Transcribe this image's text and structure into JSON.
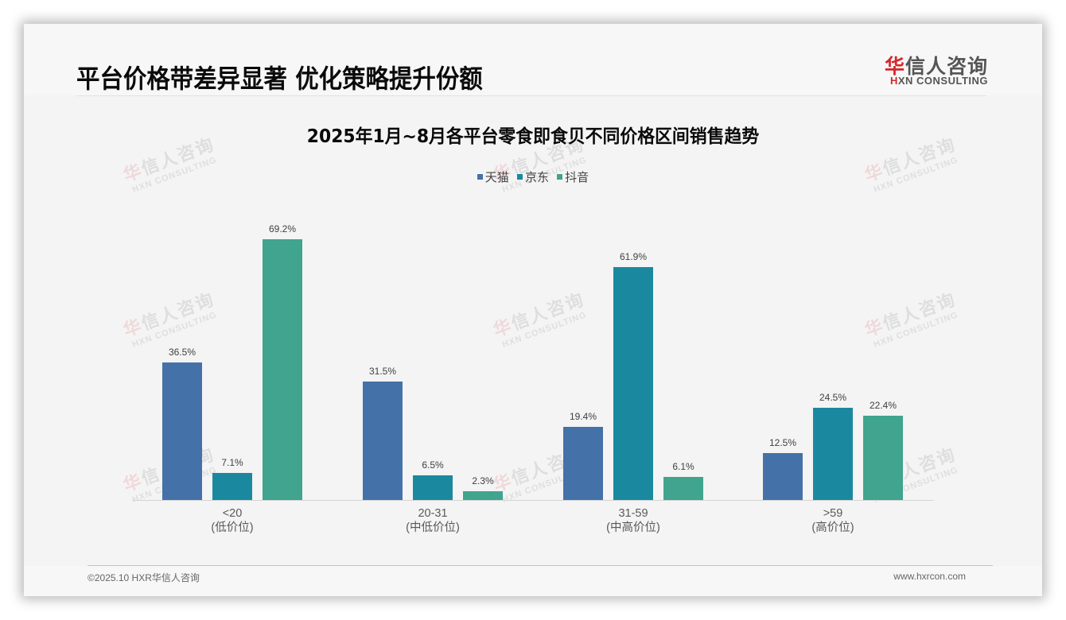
{
  "header": {
    "title": "平台价格带差异显著 优化策略提升份额",
    "logo": {
      "cn_first": "华",
      "cn_rest": "信人咨询",
      "en_first": "H",
      "en_rest": "XN CONSULTING"
    }
  },
  "watermark": {
    "cn_first": "华",
    "cn_rest": "信人咨询",
    "en": "HXN CONSULTING"
  },
  "colors": {
    "tmall": "#4472a8",
    "jd": "#1a89a0",
    "douyin": "#40a48f",
    "accent_red": "#d7262b"
  },
  "chart_data": {
    "type": "bar",
    "title": "2025年1月~8月各平台零食即食贝不同价格区间销售趋势",
    "xlabel": "",
    "ylabel": "",
    "ylim": [
      0,
      75
    ],
    "grid": false,
    "legend_position": "top",
    "categories": [
      "<20",
      "20-31",
      "31-59",
      ">59"
    ],
    "category_sublabels": [
      "(低价位)",
      "(中低价位)",
      "(中高价位)",
      "(高价位)"
    ],
    "series": [
      {
        "name": "天猫",
        "color": "#4472a8",
        "values": [
          36.5,
          31.5,
          19.4,
          12.5
        ],
        "labels": [
          "36.5%",
          "31.5%",
          "19.4%",
          "12.5%"
        ]
      },
      {
        "name": "京东",
        "color": "#1a89a0",
        "values": [
          7.1,
          6.5,
          61.9,
          24.5
        ],
        "labels": [
          "7.1%",
          "6.5%",
          "61.9%",
          "24.5%"
        ]
      },
      {
        "name": "抖音",
        "color": "#40a48f",
        "values": [
          69.2,
          2.3,
          6.1,
          22.4
        ],
        "labels": [
          "69.2%",
          "2.3%",
          "6.1%",
          "22.4%"
        ]
      }
    ]
  },
  "footer": {
    "copyright": "©2025.10 HXR华信人咨询",
    "website": "www.hxrcon.com"
  }
}
